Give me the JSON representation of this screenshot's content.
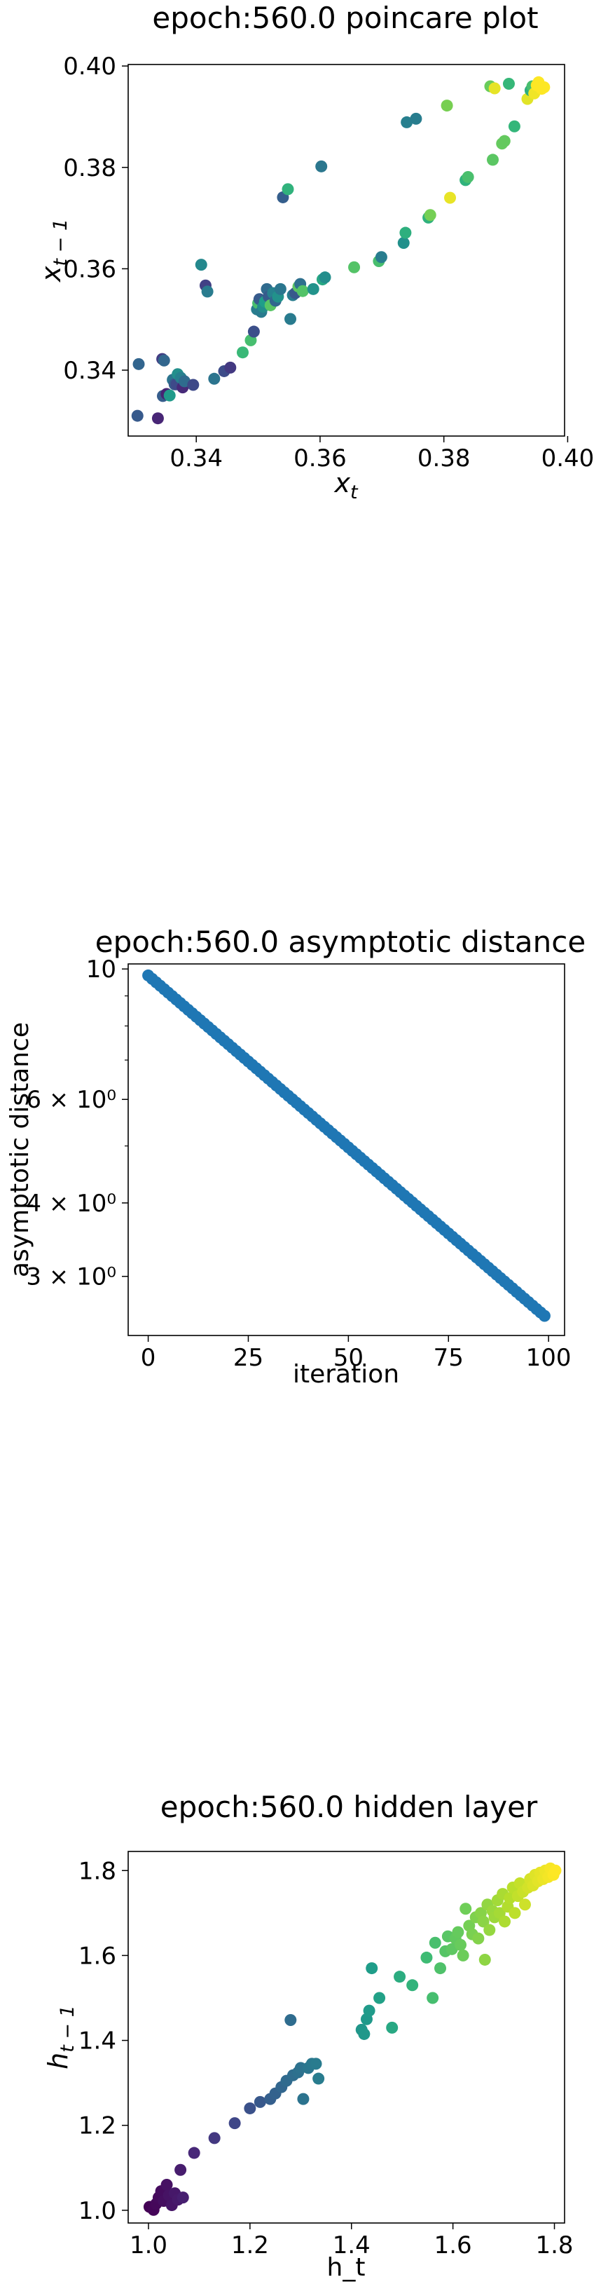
{
  "figure": {
    "background": "#ffffff",
    "axis_color": "#000000"
  },
  "chart_data": [
    {
      "type": "scatter",
      "title": "epoch:560.0 poincare plot",
      "xlabel": "x_t",
      "ylabel": "x_{t-1}",
      "xlim": [
        0.329,
        0.3995
      ],
      "ylim": [
        0.327,
        0.4003
      ],
      "xticks": [
        "0.34",
        "0.36",
        "0.38",
        "0.40"
      ],
      "yticks": [
        "0.34",
        "0.36",
        "0.38",
        "0.40"
      ],
      "xtick_values": [
        0.34,
        0.36,
        0.38,
        0.4
      ],
      "ytick_values": [
        0.34,
        0.36,
        0.38,
        0.4
      ],
      "colormap": "viridis",
      "color_order": "sequence",
      "grid": false,
      "points": [
        {
          "x": 0.3305,
          "y": 0.331
        },
        {
          "x": 0.3307,
          "y": 0.3412
        },
        {
          "x": 0.3338,
          "y": 0.3305
        },
        {
          "x": 0.3345,
          "y": 0.3422
        },
        {
          "x": 0.3346,
          "y": 0.3349
        },
        {
          "x": 0.3348,
          "y": 0.3419
        },
        {
          "x": 0.3352,
          "y": 0.3353
        },
        {
          "x": 0.3357,
          "y": 0.335
        },
        {
          "x": 0.3362,
          "y": 0.3381
        },
        {
          "x": 0.3365,
          "y": 0.3372
        },
        {
          "x": 0.3368,
          "y": 0.3372
        },
        {
          "x": 0.337,
          "y": 0.3392
        },
        {
          "x": 0.3375,
          "y": 0.3385
        },
        {
          "x": 0.3378,
          "y": 0.3366
        },
        {
          "x": 0.3381,
          "y": 0.3378
        },
        {
          "x": 0.3395,
          "y": 0.3371
        },
        {
          "x": 0.3408,
          "y": 0.3608
        },
        {
          "x": 0.3415,
          "y": 0.3567
        },
        {
          "x": 0.3418,
          "y": 0.3555
        },
        {
          "x": 0.3429,
          "y": 0.3383
        },
        {
          "x": 0.3445,
          "y": 0.3398
        },
        {
          "x": 0.3455,
          "y": 0.3405
        },
        {
          "x": 0.3475,
          "y": 0.3435
        },
        {
          "x": 0.3488,
          "y": 0.3459
        },
        {
          "x": 0.3493,
          "y": 0.3476
        },
        {
          "x": 0.3498,
          "y": 0.352
        },
        {
          "x": 0.35,
          "y": 0.3532
        },
        {
          "x": 0.3502,
          "y": 0.354
        },
        {
          "x": 0.3505,
          "y": 0.3515
        },
        {
          "x": 0.3508,
          "y": 0.3525
        },
        {
          "x": 0.3511,
          "y": 0.3535
        },
        {
          "x": 0.3514,
          "y": 0.356
        },
        {
          "x": 0.3517,
          "y": 0.3545
        },
        {
          "x": 0.352,
          "y": 0.3528
        },
        {
          "x": 0.3524,
          "y": 0.3552
        },
        {
          "x": 0.3528,
          "y": 0.3537
        },
        {
          "x": 0.3532,
          "y": 0.3545
        },
        {
          "x": 0.3536,
          "y": 0.356
        },
        {
          "x": 0.354,
          "y": 0.3741
        },
        {
          "x": 0.3548,
          "y": 0.3757
        },
        {
          "x": 0.3552,
          "y": 0.3501
        },
        {
          "x": 0.3556,
          "y": 0.3548
        },
        {
          "x": 0.356,
          "y": 0.3552
        },
        {
          "x": 0.3565,
          "y": 0.3565
        },
        {
          "x": 0.3568,
          "y": 0.357
        },
        {
          "x": 0.3572,
          "y": 0.3556
        },
        {
          "x": 0.3589,
          "y": 0.356
        },
        {
          "x": 0.3602,
          "y": 0.3802
        },
        {
          "x": 0.3604,
          "y": 0.3579
        },
        {
          "x": 0.3608,
          "y": 0.3583
        },
        {
          "x": 0.3655,
          "y": 0.3603
        },
        {
          "x": 0.3695,
          "y": 0.3615
        },
        {
          "x": 0.3699,
          "y": 0.3623
        },
        {
          "x": 0.3735,
          "y": 0.3651
        },
        {
          "x": 0.3738,
          "y": 0.3671
        },
        {
          "x": 0.374,
          "y": 0.3889
        },
        {
          "x": 0.3755,
          "y": 0.3896
        },
        {
          "x": 0.3775,
          "y": 0.3701
        },
        {
          "x": 0.3778,
          "y": 0.3706
        },
        {
          "x": 0.3805,
          "y": 0.3922
        },
        {
          "x": 0.381,
          "y": 0.374
        },
        {
          "x": 0.3835,
          "y": 0.3775
        },
        {
          "x": 0.3839,
          "y": 0.3781
        },
        {
          "x": 0.3875,
          "y": 0.396
        },
        {
          "x": 0.3879,
          "y": 0.3815
        },
        {
          "x": 0.3882,
          "y": 0.3956
        },
        {
          "x": 0.3894,
          "y": 0.3847
        },
        {
          "x": 0.3898,
          "y": 0.3852
        },
        {
          "x": 0.3905,
          "y": 0.3965
        },
        {
          "x": 0.3914,
          "y": 0.3881
        },
        {
          "x": 0.3935,
          "y": 0.3935
        },
        {
          "x": 0.394,
          "y": 0.3952
        },
        {
          "x": 0.3943,
          "y": 0.396
        },
        {
          "x": 0.3946,
          "y": 0.3946
        },
        {
          "x": 0.395,
          "y": 0.3962
        },
        {
          "x": 0.3953,
          "y": 0.3968
        },
        {
          "x": 0.3958,
          "y": 0.3955
        },
        {
          "x": 0.3962,
          "y": 0.3958
        }
      ]
    },
    {
      "type": "scatter",
      "title": "epoch:560.0 asymptotic distance",
      "xlabel": "iteration",
      "ylabel": "asymptotic distance",
      "yscale": "log",
      "xlim": [
        -5,
        104
      ],
      "ylim": [
        2.38,
        10.2
      ],
      "xticks": [
        "0",
        "25",
        "50",
        "75",
        "100"
      ],
      "xtick_values": [
        0,
        25,
        50,
        75,
        100
      ],
      "yticks": [
        "10",
        "6 × 10⁰",
        "4 × 10⁰",
        "3 × 10⁰"
      ],
      "ytick_values": [
        10,
        6,
        4,
        3
      ],
      "color": "#1f77b4",
      "grid": false,
      "y_start": 9.75,
      "y_end": 2.57,
      "n_points": 100
    },
    {
      "type": "scatter",
      "title": "epoch:560.0 hidden layer",
      "xlabel": "h_t",
      "ylabel": "h_{t-1}",
      "xlim": [
        0.96,
        1.82
      ],
      "ylim": [
        0.97,
        1.845
      ],
      "xticks": [
        "1.0",
        "1.2",
        "1.4",
        "1.6",
        "1.8"
      ],
      "xtick_values": [
        1.0,
        1.2,
        1.4,
        1.6,
        1.8
      ],
      "yticks": [
        "1.0",
        "1.2",
        "1.4",
        "1.6",
        "1.8"
      ],
      "ytick_values": [
        1.0,
        1.2,
        1.4,
        1.6,
        1.8
      ],
      "colormap": "viridis",
      "color_order": "by_value",
      "grid": false,
      "points": [
        {
          "x": 1.002,
          "y": 1.008
        },
        {
          "x": 1.01,
          "y": 1.001
        },
        {
          "x": 1.015,
          "y": 1.015
        },
        {
          "x": 1.02,
          "y": 1.03
        },
        {
          "x": 1.025,
          "y": 1.045
        },
        {
          "x": 1.03,
          "y": 1.022
        },
        {
          "x": 1.036,
          "y": 1.06
        },
        {
          "x": 1.04,
          "y": 1.035
        },
        {
          "x": 1.046,
          "y": 1.012
        },
        {
          "x": 1.052,
          "y": 1.04
        },
        {
          "x": 1.058,
          "y": 1.025
        },
        {
          "x": 1.063,
          "y": 1.095
        },
        {
          "x": 1.068,
          "y": 1.03
        },
        {
          "x": 1.09,
          "y": 1.135
        },
        {
          "x": 1.13,
          "y": 1.17
        },
        {
          "x": 1.17,
          "y": 1.205
        },
        {
          "x": 1.2,
          "y": 1.24
        },
        {
          "x": 1.22,
          "y": 1.255
        },
        {
          "x": 1.24,
          "y": 1.262
        },
        {
          "x": 1.25,
          "y": 1.275
        },
        {
          "x": 1.262,
          "y": 1.29
        },
        {
          "x": 1.272,
          "y": 1.305
        },
        {
          "x": 1.28,
          "y": 1.448
        },
        {
          "x": 1.285,
          "y": 1.318
        },
        {
          "x": 1.295,
          "y": 1.325
        },
        {
          "x": 1.3,
          "y": 1.335
        },
        {
          "x": 1.305,
          "y": 1.262
        },
        {
          "x": 1.315,
          "y": 1.335
        },
        {
          "x": 1.322,
          "y": 1.345
        },
        {
          "x": 1.33,
          "y": 1.345
        },
        {
          "x": 1.335,
          "y": 1.31
        },
        {
          "x": 1.42,
          "y": 1.425
        },
        {
          "x": 1.425,
          "y": 1.415
        },
        {
          "x": 1.43,
          "y": 1.45
        },
        {
          "x": 1.435,
          "y": 1.47
        },
        {
          "x": 1.44,
          "y": 1.57
        },
        {
          "x": 1.455,
          "y": 1.5
        },
        {
          "x": 1.48,
          "y": 1.43
        },
        {
          "x": 1.495,
          "y": 1.55
        },
        {
          "x": 1.52,
          "y": 1.53
        },
        {
          "x": 1.548,
          "y": 1.595
        },
        {
          "x": 1.56,
          "y": 1.5
        },
        {
          "x": 1.565,
          "y": 1.63
        },
        {
          "x": 1.575,
          "y": 1.57
        },
        {
          "x": 1.585,
          "y": 1.61
        },
        {
          "x": 1.59,
          "y": 1.645
        },
        {
          "x": 1.598,
          "y": 1.615
        },
        {
          "x": 1.605,
          "y": 1.64
        },
        {
          "x": 1.61,
          "y": 1.655
        },
        {
          "x": 1.615,
          "y": 1.625
        },
        {
          "x": 1.62,
          "y": 1.6
        },
        {
          "x": 1.625,
          "y": 1.71
        },
        {
          "x": 1.632,
          "y": 1.67
        },
        {
          "x": 1.638,
          "y": 1.65
        },
        {
          "x": 1.645,
          "y": 1.69
        },
        {
          "x": 1.65,
          "y": 1.64
        },
        {
          "x": 1.655,
          "y": 1.7
        },
        {
          "x": 1.66,
          "y": 1.68
        },
        {
          "x": 1.663,
          "y": 1.59
        },
        {
          "x": 1.668,
          "y": 1.72
        },
        {
          "x": 1.672,
          "y": 1.66
        },
        {
          "x": 1.678,
          "y": 1.705
        },
        {
          "x": 1.682,
          "y": 1.69
        },
        {
          "x": 1.688,
          "y": 1.73
        },
        {
          "x": 1.692,
          "y": 1.7
        },
        {
          "x": 1.698,
          "y": 1.745
        },
        {
          "x": 1.702,
          "y": 1.68
        },
        {
          "x": 1.708,
          "y": 1.715
        },
        {
          "x": 1.712,
          "y": 1.735
        },
        {
          "x": 1.718,
          "y": 1.76
        },
        {
          "x": 1.722,
          "y": 1.7
        },
        {
          "x": 1.728,
          "y": 1.74
        },
        {
          "x": 1.732,
          "y": 1.77
        },
        {
          "x": 1.738,
          "y": 1.75
        },
        {
          "x": 1.742,
          "y": 1.72
        },
        {
          "x": 1.748,
          "y": 1.76
        },
        {
          "x": 1.752,
          "y": 1.78
        },
        {
          "x": 1.758,
          "y": 1.765
        },
        {
          "x": 1.762,
          "y": 1.79
        },
        {
          "x": 1.768,
          "y": 1.775
        },
        {
          "x": 1.772,
          "y": 1.795
        },
        {
          "x": 1.778,
          "y": 1.78
        },
        {
          "x": 1.782,
          "y": 1.8
        },
        {
          "x": 1.788,
          "y": 1.785
        },
        {
          "x": 1.792,
          "y": 1.805
        },
        {
          "x": 1.798,
          "y": 1.79
        },
        {
          "x": 1.802,
          "y": 1.8
        }
      ]
    }
  ]
}
